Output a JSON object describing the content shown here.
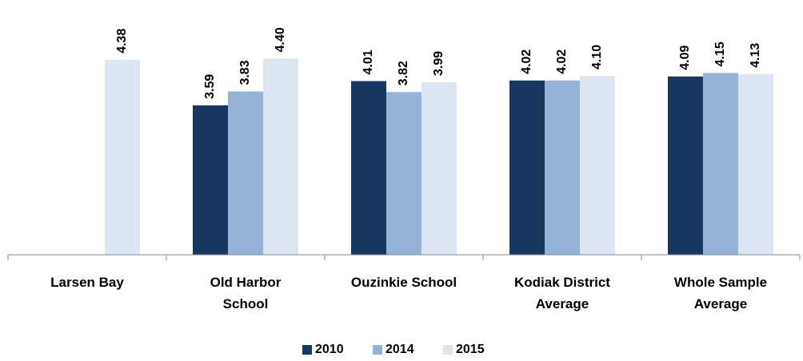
{
  "chart_data": {
    "type": "bar",
    "categories": [
      "Larsen Bay",
      "Old Harbor\nSchool",
      "Ouzinkie School",
      "Kodiak District\nAverage",
      "Whole Sample\nAverage"
    ],
    "series": [
      {
        "name": "2010",
        "color": "#17375e",
        "values": [
          null,
          3.59,
          4.01,
          4.02,
          4.09
        ],
        "value_labels": [
          null,
          "3.59",
          "4.01",
          "4.02",
          "4.09"
        ]
      },
      {
        "name": "2014",
        "color": "#95b3d7",
        "values": [
          null,
          3.83,
          3.82,
          4.02,
          4.15
        ],
        "value_labels": [
          null,
          "3.83",
          "3.82",
          "4.02",
          "4.15"
        ]
      },
      {
        "name": "2015",
        "color": "#dce6f2",
        "values": [
          4.38,
          4.4,
          3.99,
          4.1,
          4.13
        ],
        "value_labels": [
          "4.38",
          "4.40",
          "3.99",
          "4.10",
          "4.13"
        ]
      }
    ],
    "ylim": [
      1,
      5
    ],
    "grid": false
  }
}
